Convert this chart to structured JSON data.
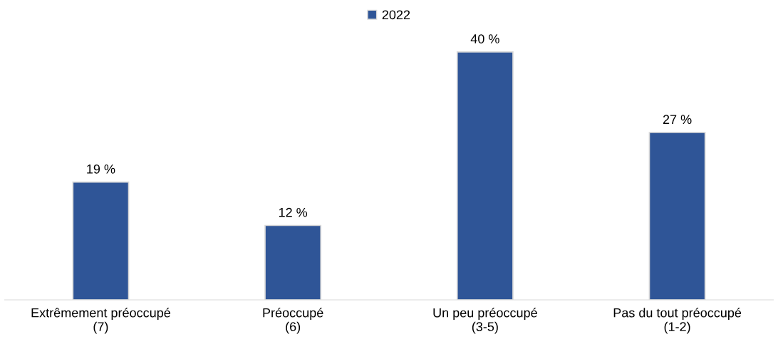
{
  "chart_data": {
    "type": "bar",
    "categories": [
      "Extrêmement préoccupé\n(7)",
      "Préoccupé\n(6)",
      "Un peu préoccupé\n(3-5)",
      "Pas du tout préoccupé\n(1-2)"
    ],
    "series": [
      {
        "name": "2022",
        "color": "#2f5597",
        "values": [
          19,
          12,
          40,
          27
        ],
        "value_labels": [
          "19 %",
          "12 %",
          "40 %",
          "27 %"
        ]
      }
    ],
    "legend": "top",
    "grid": false
  }
}
